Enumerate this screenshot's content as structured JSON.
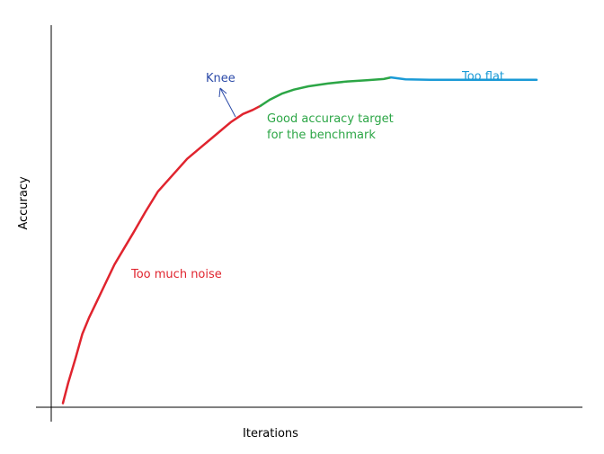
{
  "chart_data": {
    "type": "line",
    "title": "",
    "xlabel": "Iterations",
    "ylabel": "Accuracy",
    "grid": false,
    "axis_ticks": false,
    "xlim": [
      0,
      100
    ],
    "ylim": [
      0,
      100
    ],
    "series": [
      {
        "segment": "noise",
        "color": "#e0242e",
        "points": [
          [
            2.4,
            1
          ],
          [
            3.5,
            6
          ],
          [
            5,
            12
          ],
          [
            6.4,
            18
          ],
          [
            7.8,
            22
          ],
          [
            9.4,
            26
          ],
          [
            11,
            30
          ],
          [
            13,
            35
          ],
          [
            15,
            39
          ],
          [
            17,
            43
          ],
          [
            19.4,
            48
          ],
          [
            22,
            53
          ],
          [
            25,
            57
          ],
          [
            28,
            61
          ],
          [
            31,
            64
          ],
          [
            34,
            67
          ],
          [
            37,
            70
          ],
          [
            39.5,
            72
          ],
          [
            41.5,
            73
          ],
          [
            43.1,
            74
          ]
        ]
      },
      {
        "segment": "good",
        "color": "#2ca646",
        "points": [
          [
            43.1,
            74
          ],
          [
            45,
            75.5
          ],
          [
            47.5,
            77
          ],
          [
            50,
            78
          ],
          [
            53,
            78.8
          ],
          [
            57,
            79.5
          ],
          [
            61,
            80
          ],
          [
            65,
            80.3
          ],
          [
            68.5,
            80.6
          ],
          [
            70,
            81
          ]
        ]
      },
      {
        "segment": "flat",
        "color": "#1a9ad6",
        "points": [
          [
            70,
            81
          ],
          [
            73,
            80.5
          ],
          [
            78,
            80.4
          ],
          [
            85,
            80.4
          ],
          [
            92,
            80.4
          ],
          [
            100,
            80.4
          ]
        ]
      }
    ],
    "annotations": [
      {
        "text": "Knee",
        "color": "#2b4aa8",
        "at": [
          43.1,
          74
        ]
      },
      {
        "text": "Too much noise",
        "color": "#e0242e"
      },
      {
        "text": "Good accuracy target",
        "color": "#2ca646"
      },
      {
        "text": "for the benchmark",
        "color": "#2ca646"
      },
      {
        "text": "Too flat",
        "color": "#1a9ad6"
      }
    ]
  }
}
